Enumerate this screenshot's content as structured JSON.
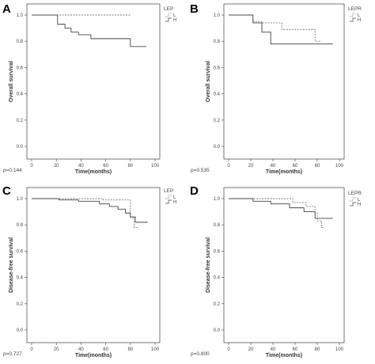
{
  "chart_data": [
    {
      "id": "A",
      "type": "line",
      "panel_label": "A",
      "ylabel": "Overall survival",
      "xlabel": "Time(months)",
      "xlim": [
        0,
        100
      ],
      "ylim": [
        0,
        1.0
      ],
      "xticks": [
        0,
        20,
        40,
        60,
        80,
        100
      ],
      "yticks": [
        0.0,
        0.2,
        0.4,
        0.6,
        0.8,
        1.0
      ],
      "p_value": "p=0.144",
      "legend_title": "LEP",
      "series": [
        {
          "name": "L",
          "dash": true,
          "points": [
            [
              0,
              1.0
            ],
            [
              80,
              1.0
            ]
          ]
        },
        {
          "name": "H",
          "dash": false,
          "points": [
            [
              0,
              1.0
            ],
            [
              21,
              1.0
            ],
            [
              21,
              0.93
            ],
            [
              27,
              0.93
            ],
            [
              27,
              0.9
            ],
            [
              32,
              0.9
            ],
            [
              32,
              0.87
            ],
            [
              38,
              0.87
            ],
            [
              38,
              0.85
            ],
            [
              48,
              0.85
            ],
            [
              48,
              0.82
            ],
            [
              62,
              0.82
            ],
            [
              62,
              0.82
            ],
            [
              80,
              0.82
            ],
            [
              80,
              0.76
            ],
            [
              93,
              0.76
            ]
          ]
        }
      ]
    },
    {
      "id": "B",
      "type": "line",
      "panel_label": "B",
      "ylabel": "Overall survival",
      "xlabel": "Time(months)",
      "xlim": [
        0,
        100
      ],
      "ylim": [
        0,
        1.0
      ],
      "xticks": [
        0,
        20,
        40,
        60,
        80,
        100
      ],
      "yticks": [
        0.0,
        0.2,
        0.4,
        0.6,
        0.8,
        1.0
      ],
      "p_value": "p=0.535",
      "legend_title": "LEPR",
      "series": [
        {
          "name": "L",
          "dash": true,
          "points": [
            [
              0,
              1.0
            ],
            [
              22,
              1.0
            ],
            [
              22,
              0.95
            ],
            [
              30,
              0.95
            ],
            [
              30,
              0.94
            ],
            [
              48,
              0.94
            ],
            [
              48,
              0.89
            ],
            [
              78,
              0.89
            ],
            [
              78,
              0.8
            ],
            [
              84,
              0.8
            ]
          ]
        },
        {
          "name": "H",
          "dash": false,
          "points": [
            [
              0,
              1.0
            ],
            [
              22,
              1.0
            ],
            [
              22,
              0.94
            ],
            [
              30,
              0.94
            ],
            [
              30,
              0.87
            ],
            [
              38,
              0.87
            ],
            [
              38,
              0.78
            ],
            [
              94,
              0.78
            ]
          ]
        }
      ]
    },
    {
      "id": "C",
      "type": "line",
      "panel_label": "C",
      "ylabel": "Disease-free survival",
      "xlabel": "Time(months)",
      "xlim": [
        0,
        100
      ],
      "ylim": [
        0,
        1.0
      ],
      "xticks": [
        0,
        20,
        40,
        60,
        80,
        100
      ],
      "yticks": [
        0.0,
        0.2,
        0.4,
        0.6,
        0.8,
        1.0
      ],
      "p_value": "p=0.727",
      "legend_title": "LEP",
      "series": [
        {
          "name": "L",
          "dash": true,
          "points": [
            [
              0,
              1.0
            ],
            [
              58,
              1.0
            ],
            [
              58,
              0.99
            ],
            [
              80,
              0.99
            ],
            [
              80,
              0.86
            ],
            [
              83,
              0.86
            ],
            [
              83,
              0.78
            ],
            [
              86,
              0.78
            ]
          ]
        },
        {
          "name": "H",
          "dash": false,
          "points": [
            [
              0,
              1.0
            ],
            [
              22,
              1.0
            ],
            [
              22,
              0.99
            ],
            [
              38,
              0.99
            ],
            [
              38,
              0.98
            ],
            [
              55,
              0.98
            ],
            [
              55,
              0.96
            ],
            [
              63,
              0.96
            ],
            [
              63,
              0.94
            ],
            [
              70,
              0.94
            ],
            [
              70,
              0.92
            ],
            [
              76,
              0.92
            ],
            [
              76,
              0.89
            ],
            [
              80,
              0.89
            ],
            [
              80,
              0.86
            ],
            [
              84,
              0.86
            ],
            [
              84,
              0.82
            ],
            [
              94,
              0.82
            ]
          ]
        }
      ]
    },
    {
      "id": "D",
      "type": "line",
      "panel_label": "D",
      "ylabel": "Disease-free survival",
      "xlabel": "Time(months)",
      "xlim": [
        0,
        100
      ],
      "ylim": [
        0,
        1.0
      ],
      "xticks": [
        0,
        20,
        40,
        60,
        80,
        100
      ],
      "yticks": [
        0.0,
        0.2,
        0.4,
        0.6,
        0.8,
        1.0
      ],
      "p_value": "p=0.800",
      "legend_title": "LEPR",
      "series": [
        {
          "name": "L",
          "dash": true,
          "points": [
            [
              0,
              1.0
            ],
            [
              58,
              1.0
            ],
            [
              58,
              0.97
            ],
            [
              70,
              0.97
            ],
            [
              70,
              0.94
            ],
            [
              78,
              0.94
            ],
            [
              78,
              0.89
            ],
            [
              80,
              0.89
            ],
            [
              80,
              0.83
            ],
            [
              84,
              0.83
            ],
            [
              84,
              0.78
            ],
            [
              86,
              0.78
            ]
          ]
        },
        {
          "name": "H",
          "dash": false,
          "points": [
            [
              0,
              1.0
            ],
            [
              22,
              1.0
            ],
            [
              22,
              0.98
            ],
            [
              38,
              0.98
            ],
            [
              38,
              0.96
            ],
            [
              55,
              0.96
            ],
            [
              55,
              0.93
            ],
            [
              68,
              0.93
            ],
            [
              68,
              0.9
            ],
            [
              78,
              0.9
            ],
            [
              78,
              0.85
            ],
            [
              94,
              0.85
            ]
          ]
        }
      ]
    }
  ]
}
